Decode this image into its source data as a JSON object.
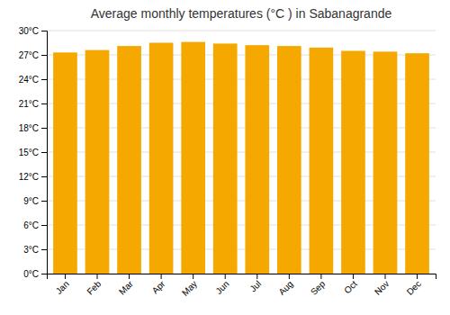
{
  "chart_data": {
    "type": "bar",
    "title": "Average monthly temperatures (°C ) in Sabanagrande",
    "categories": [
      "Jan",
      "Feb",
      "Mar",
      "Apr",
      "May",
      "Jun",
      "Jul",
      "Aug",
      "Sep",
      "Oct",
      "Nov",
      "Dec"
    ],
    "values": [
      27.3,
      27.6,
      28.1,
      28.5,
      28.6,
      28.4,
      28.2,
      28.1,
      27.9,
      27.5,
      27.4,
      27.2
    ],
    "color": "#F5A800",
    "ylim": [
      0,
      30
    ],
    "yticks": [
      {
        "value": 0,
        "label": "0°C"
      },
      {
        "value": 3,
        "label": "3°C"
      },
      {
        "value": 6,
        "label": "6°C"
      },
      {
        "value": 9,
        "label": "9°C"
      },
      {
        "value": 12,
        "label": "12°C"
      },
      {
        "value": 15,
        "label": "15°C"
      },
      {
        "value": 18,
        "label": "18°C"
      },
      {
        "value": 21,
        "label": "21°C"
      },
      {
        "value": 24,
        "label": "24°C"
      },
      {
        "value": 27,
        "label": "27°C"
      },
      {
        "value": 30,
        "label": "30°C"
      }
    ],
    "grid": true
  }
}
